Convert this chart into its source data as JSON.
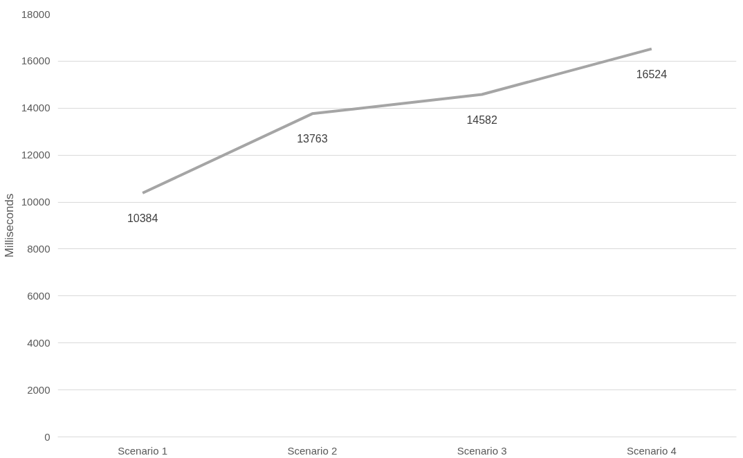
{
  "chart_data": {
    "type": "line",
    "ylabel": "Milliseconds",
    "categories": [
      "Scenario 1",
      "Scenario 2",
      "Scenario 3",
      "Scenario 4"
    ],
    "series": [
      {
        "color": "#a5a5a5",
        "values": [
          10384,
          13763,
          14582,
          16524
        ]
      }
    ],
    "ylim": [
      0,
      18000
    ],
    "yticks": [
      0,
      2000,
      4000,
      6000,
      8000,
      10000,
      12000,
      14000,
      16000,
      18000
    ],
    "grid": "y",
    "data_labels": true,
    "marker": "none",
    "line_style": "solid"
  }
}
